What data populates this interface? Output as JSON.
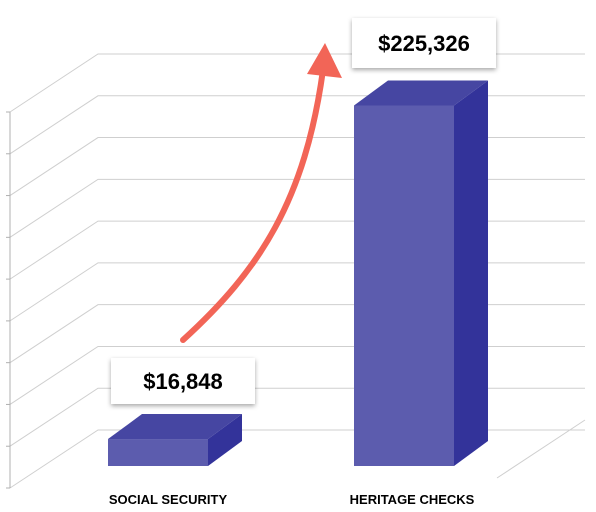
{
  "chart_data": {
    "type": "bar",
    "title": "",
    "xlabel": "",
    "ylabel": "",
    "categories": [
      "SOCIAL SECURITY",
      "HERITAGE CHECKS"
    ],
    "values": [
      16848,
      225326
    ],
    "value_labels": [
      "$16,848",
      "$225,326"
    ],
    "ylim": [
      0,
      250000
    ],
    "grid": true,
    "legend": "none",
    "three_d": true,
    "annotation": "arrow-up-right",
    "colors": {
      "bar_front": "#5c5cae",
      "bar_top": "#4646a2",
      "bar_side": "#33339a",
      "arrow": "#f26557",
      "grid": "#cfcfcf"
    }
  }
}
